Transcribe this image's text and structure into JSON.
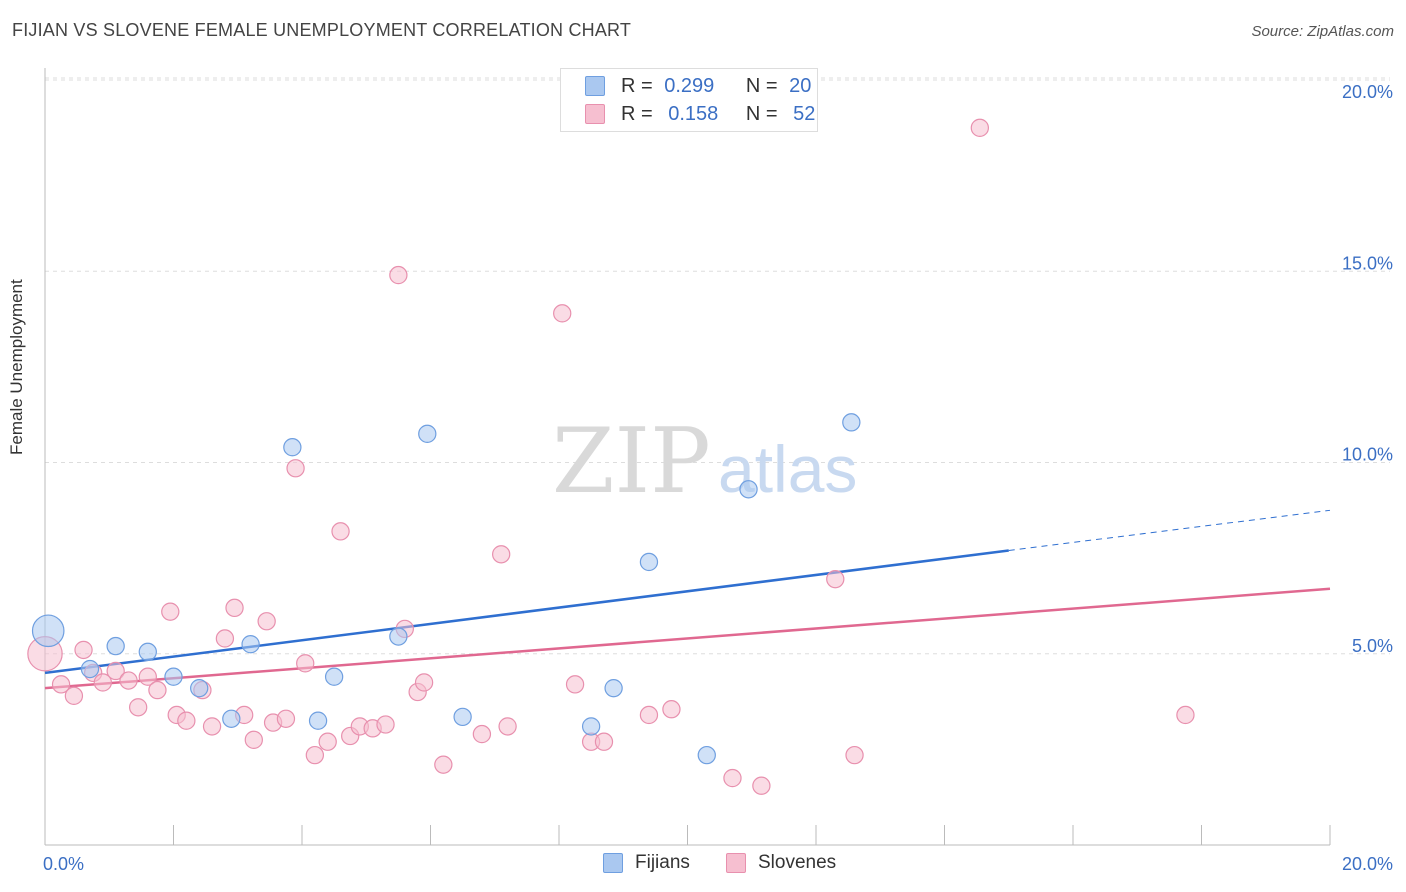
{
  "header": {
    "title": "FIJIAN VS SLOVENE FEMALE UNEMPLOYMENT CORRELATION CHART",
    "source": "Source: ZipAtlas.com"
  },
  "legend_top": {
    "rows": [
      {
        "r_label": "R =",
        "r_value": "0.299",
        "n_label": "N =",
        "n_value": "20"
      },
      {
        "r_label": "R =",
        "r_value": "0.158",
        "n_label": "N =",
        "n_value": "52"
      }
    ]
  },
  "legend_bottom": {
    "items": [
      {
        "label": "Fijians"
      },
      {
        "label": "Slovenes"
      }
    ]
  },
  "colors": {
    "fijian_fill": "#aac8f0",
    "fijian_stroke": "#6f9fe0",
    "fijian_line": "#2f6fd0",
    "slovene_fill": "#f6bfd0",
    "slovene_stroke": "#e890ae",
    "slovene_line": "#e06890",
    "tick_label": "#3b6fc4"
  },
  "chart_data": {
    "type": "scatter",
    "title": "FIJIAN VS SLOVENE FEMALE UNEMPLOYMENT CORRELATION CHART",
    "xlabel": "",
    "ylabel": "Female Unemployment",
    "xlim": [
      0,
      20
    ],
    "ylim": [
      0,
      20
    ],
    "x_tick_labels": [
      {
        "value": 0,
        "label": "0.0%"
      },
      {
        "value": 20,
        "label": "20.0%"
      }
    ],
    "y_tick_labels": [
      {
        "value": 5,
        "label": "5.0%"
      },
      {
        "value": 10,
        "label": "10.0%"
      },
      {
        "value": 15,
        "label": "15.0%"
      },
      {
        "value": 20,
        "label": "20.0%"
      }
    ],
    "watermark": {
      "part1": "ZIP",
      "part2": "atlas"
    },
    "series": [
      {
        "name": "Fijians",
        "r": 0.299,
        "n": 20,
        "trend": {
          "x0": 0,
          "y0": 4.5,
          "x1": 15,
          "y1": 7.7,
          "dash_to_x": 20,
          "dash_to_y": 8.75
        },
        "points": [
          [
            0.05,
            5.6,
            22
          ],
          [
            1.1,
            5.2,
            12
          ],
          [
            1.6,
            5.05,
            12
          ],
          [
            0.7,
            4.6,
            12
          ],
          [
            2.0,
            4.4,
            12
          ],
          [
            2.4,
            4.1,
            12
          ],
          [
            3.2,
            5.25,
            12
          ],
          [
            3.85,
            10.4,
            12
          ],
          [
            4.5,
            4.4,
            12
          ],
          [
            5.5,
            5.45,
            12
          ],
          [
            5.95,
            10.75,
            12
          ],
          [
            4.25,
            3.25,
            12
          ],
          [
            2.9,
            3.3,
            12
          ],
          [
            6.5,
            3.35,
            12
          ],
          [
            8.5,
            3.1,
            12
          ],
          [
            8.85,
            4.1,
            12
          ],
          [
            9.4,
            7.4,
            12
          ],
          [
            10.3,
            2.35,
            12
          ],
          [
            10.95,
            9.3,
            12
          ],
          [
            12.55,
            11.05,
            12
          ]
        ]
      },
      {
        "name": "Slovenes",
        "r": 0.158,
        "n": 52,
        "trend": {
          "x0": 0,
          "y0": 4.1,
          "x1": 20,
          "y1": 6.7
        },
        "points": [
          [
            0.0,
            5.0,
            24
          ],
          [
            0.25,
            4.2,
            12
          ],
          [
            0.45,
            3.9,
            12
          ],
          [
            0.6,
            5.1,
            12
          ],
          [
            0.75,
            4.5,
            12
          ],
          [
            0.9,
            4.25,
            12
          ],
          [
            1.1,
            4.55,
            12
          ],
          [
            1.3,
            4.3,
            12
          ],
          [
            1.45,
            3.6,
            12
          ],
          [
            1.6,
            4.4,
            12
          ],
          [
            1.75,
            4.05,
            12
          ],
          [
            1.95,
            6.1,
            12
          ],
          [
            2.05,
            3.4,
            12
          ],
          [
            2.2,
            3.25,
            12
          ],
          [
            2.45,
            4.05,
            12
          ],
          [
            2.6,
            3.1,
            12
          ],
          [
            2.8,
            5.4,
            12
          ],
          [
            2.95,
            6.2,
            12
          ],
          [
            3.1,
            3.4,
            12
          ],
          [
            3.25,
            2.75,
            12
          ],
          [
            3.45,
            5.85,
            12
          ],
          [
            3.55,
            3.2,
            12
          ],
          [
            3.75,
            3.3,
            12
          ],
          [
            3.9,
            9.85,
            12
          ],
          [
            4.05,
            4.75,
            12
          ],
          [
            4.2,
            2.35,
            12
          ],
          [
            4.4,
            2.7,
            12
          ],
          [
            4.6,
            8.2,
            12
          ],
          [
            4.75,
            2.85,
            12
          ],
          [
            4.9,
            3.1,
            12
          ],
          [
            5.1,
            3.05,
            12
          ],
          [
            5.3,
            3.15,
            12
          ],
          [
            5.5,
            14.9,
            12
          ],
          [
            5.6,
            5.65,
            12
          ],
          [
            5.8,
            4.0,
            12
          ],
          [
            5.9,
            4.25,
            12
          ],
          [
            6.2,
            2.1,
            12
          ],
          [
            6.8,
            2.9,
            12
          ],
          [
            7.1,
            7.6,
            12
          ],
          [
            7.2,
            3.1,
            12
          ],
          [
            8.05,
            13.9,
            12
          ],
          [
            8.25,
            4.2,
            12
          ],
          [
            8.5,
            2.7,
            12
          ],
          [
            8.7,
            2.7,
            12
          ],
          [
            9.4,
            3.4,
            12
          ],
          [
            9.75,
            3.55,
            12
          ],
          [
            10.7,
            1.75,
            12
          ],
          [
            11.15,
            1.55,
            12
          ],
          [
            12.3,
            6.95,
            12
          ],
          [
            12.6,
            2.35,
            12
          ],
          [
            14.55,
            18.75,
            12
          ],
          [
            17.75,
            3.4,
            12
          ]
        ]
      }
    ]
  }
}
